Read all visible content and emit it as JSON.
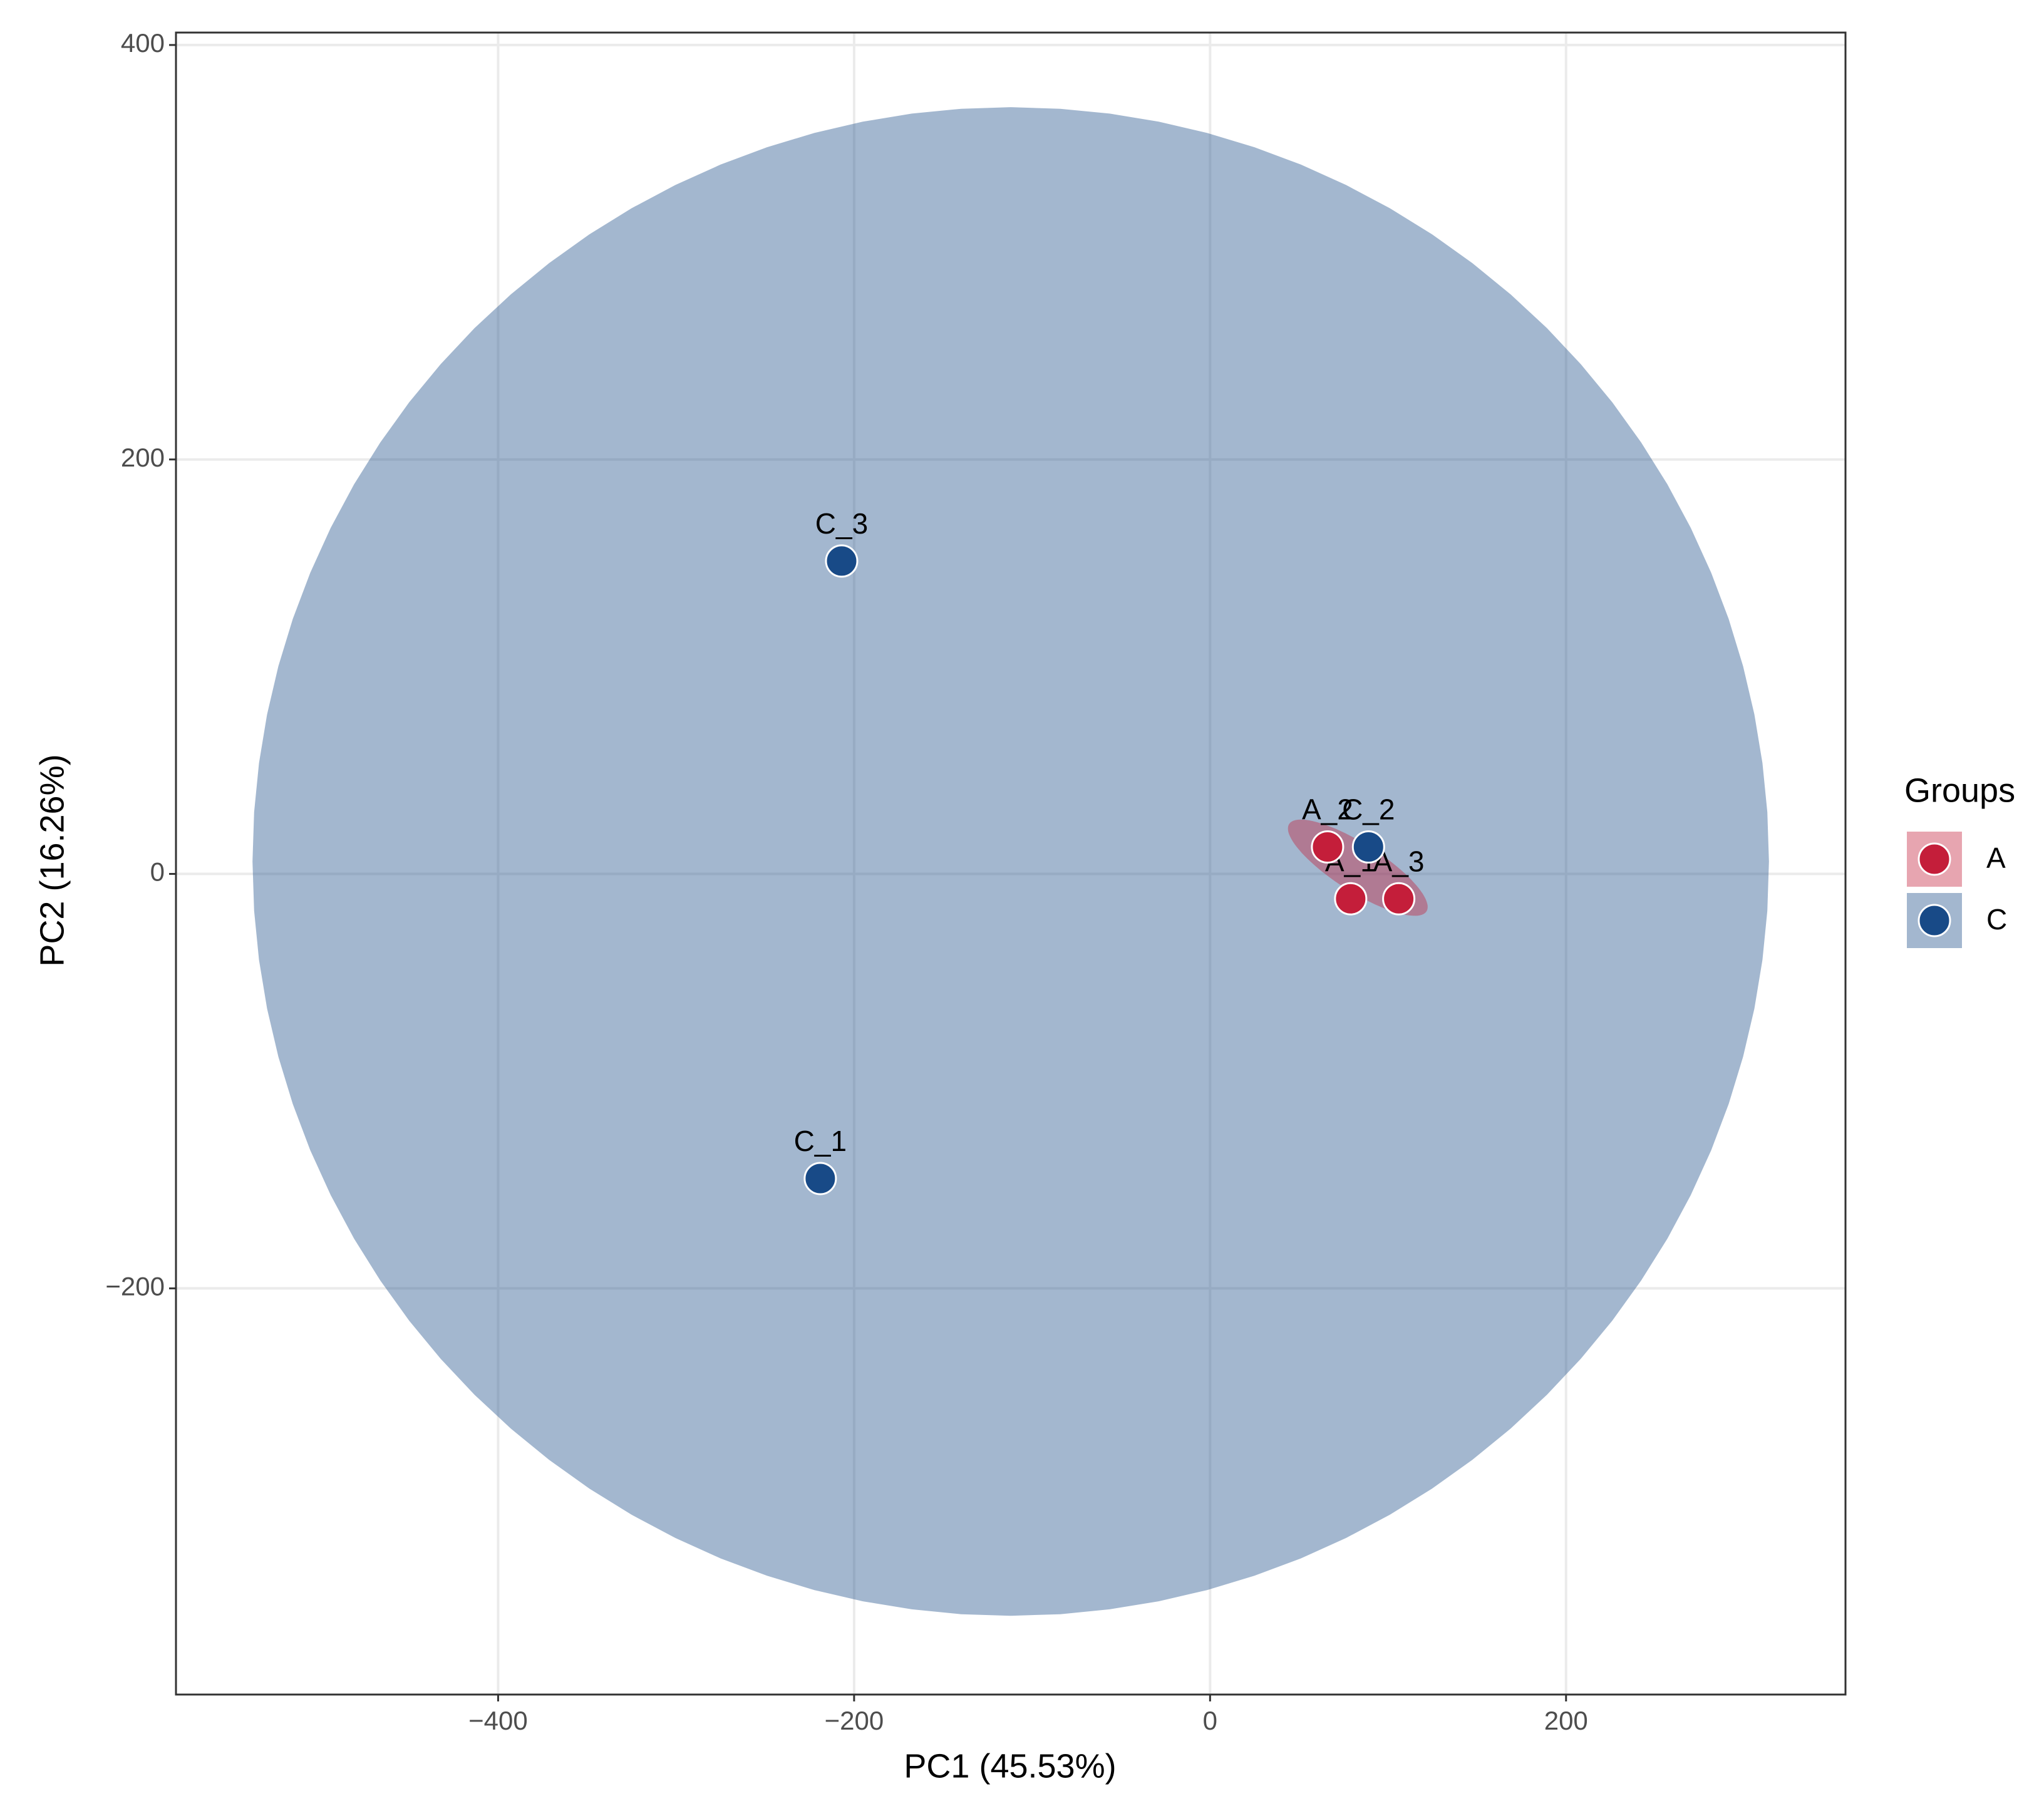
{
  "chart_data": {
    "type": "scatter",
    "xlabel": "PC1 (45.53%)",
    "ylabel": "PC2 (16.26%)",
    "legend_title": "Groups",
    "legend": "right",
    "grid": true,
    "xlim": [
      -581,
      357
    ],
    "ylim": [
      -396,
      406
    ],
    "xticks": [
      {
        "value": -400,
        "label": "−400"
      },
      {
        "value": -200,
        "label": "−200"
      },
      0,
      200
    ],
    "yticks": [
      {
        "value": -200,
        "label": "−200"
      },
      0,
      200,
      400
    ],
    "series": [
      {
        "name": "A",
        "color": "#c41e3a",
        "x": [
          79,
          66,
          106
        ],
        "y": [
          -12,
          13,
          -12
        ],
        "labels": [
          "A_1",
          "A_2",
          "A_3"
        ],
        "ellipse": {
          "center": [
            83,
            3
          ],
          "radii": [
            44,
            12
          ],
          "angle": -28
        }
      },
      {
        "name": "C",
        "color": "#184a87",
        "x": [
          -219,
          89,
          -207
        ],
        "y": [
          -147,
          13,
          151
        ],
        "labels": [
          "C_1",
          "C_2",
          "C_3"
        ],
        "ellipse": {
          "center": [
            -112,
            6
          ],
          "radii": [
            426,
            364
          ],
          "angle": 0
        }
      }
    ]
  }
}
